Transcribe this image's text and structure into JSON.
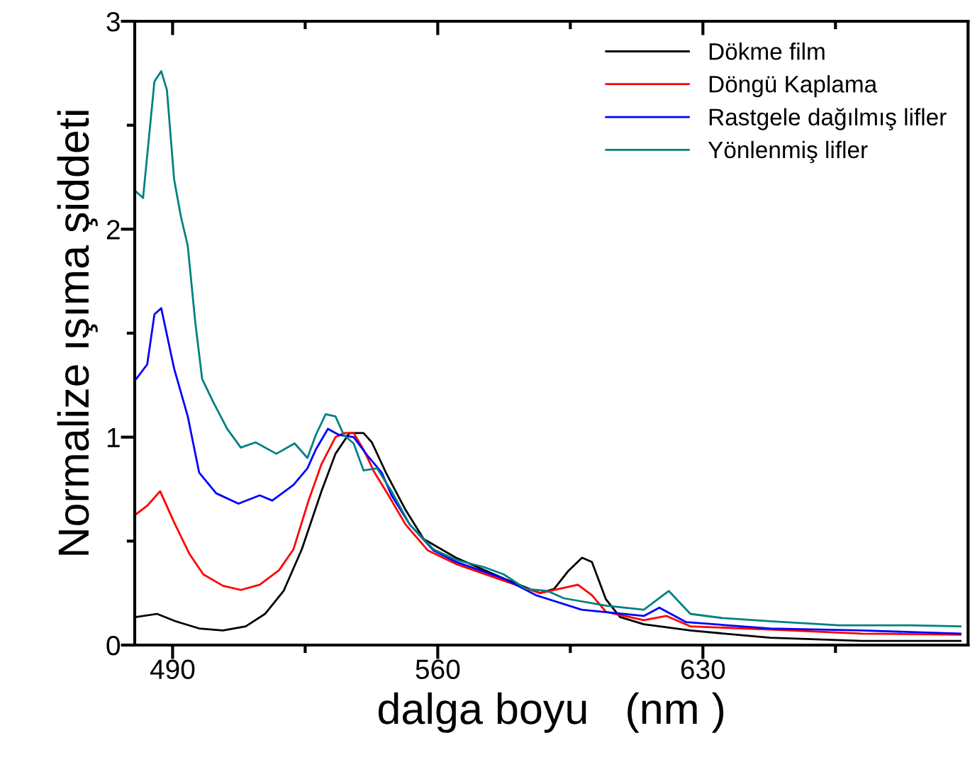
{
  "chart_data": {
    "type": "line",
    "xlabel": "dalga boyu   (nm )",
    "ylabel": "Normalize ışıma şiddeti",
    "xlim": [
      480,
      700
    ],
    "ylim": [
      0,
      3
    ],
    "xticks": [
      490,
      {
        "value": 525,
        "label": null
      },
      560,
      {
        "value": 595,
        "label": null
      },
      630,
      {
        "value": 665,
        "label": null
      }
    ],
    "yticks": [
      0,
      {
        "value": 0.5,
        "label": null
      },
      1,
      {
        "value": 1.5,
        "label": null
      },
      2,
      {
        "value": 2.5,
        "label": null
      },
      3
    ],
    "grid": false,
    "legend": "top right",
    "line_style": "solid",
    "marker": "none",
    "series": [
      {
        "name": "Dökme film",
        "color": "#000000",
        "x": [
          480.4,
          485.9,
          490.7,
          497,
          503.3,
          509.3,
          514.4,
          519.3,
          524.1,
          529.3,
          533,
          536.7,
          540.4,
          542.6,
          546.3,
          551.5,
          556.3,
          564.8,
          577.4,
          587,
          590.7,
          594.4,
          598.1,
          600.7,
          604.4,
          608.1,
          614.4,
          626.7,
          647.8,
          672,
          698
        ],
        "values": [
          0.135,
          0.15,
          0.115,
          0.08,
          0.07,
          0.09,
          0.15,
          0.26,
          0.46,
          0.74,
          0.92,
          1.02,
          1.02,
          0.975,
          0.83,
          0.65,
          0.51,
          0.42,
          0.32,
          0.25,
          0.27,
          0.355,
          0.42,
          0.4,
          0.22,
          0.135,
          0.1,
          0.07,
          0.035,
          0.02,
          0.02
        ]
      },
      {
        "name": "Döngü Kaplama",
        "color": "#ff0000",
        "x": [
          480.4,
          483.3,
          486.7,
          490.4,
          494.4,
          498.1,
          503.3,
          508,
          513,
          518.1,
          521.9,
          525.9,
          529.3,
          533,
          535.2,
          537.8,
          540.4,
          543.3,
          547,
          551.5,
          557.4,
          564.8,
          577.4,
          587,
          589.6,
          597,
          600.7,
          604.4,
          614.4,
          620.4,
          626.7,
          647.8,
          672,
          698
        ],
        "values": [
          0.63,
          0.67,
          0.74,
          0.59,
          0.44,
          0.34,
          0.285,
          0.265,
          0.29,
          0.36,
          0.46,
          0.695,
          0.87,
          1.0,
          1.02,
          1.02,
          0.94,
          0.83,
          0.72,
          0.58,
          0.455,
          0.39,
          0.31,
          0.25,
          0.26,
          0.29,
          0.24,
          0.16,
          0.12,
          0.14,
          0.09,
          0.075,
          0.055,
          0.05
        ]
      },
      {
        "name": "Rastgele dağılmış lifler",
        "color": "#0000ff",
        "x": [
          480.4,
          483.3,
          485.2,
          487,
          490.4,
          494,
          497,
          501.5,
          507.4,
          513,
          516.3,
          521.9,
          525.6,
          527.8,
          531,
          534,
          537.8,
          541.5,
          545.2,
          547.8,
          552.6,
          558.9,
          564.8,
          577.4,
          585.9,
          598,
          614.4,
          618.5,
          625.6,
          647.8,
          672,
          698
        ],
        "values": [
          1.28,
          1.35,
          1.59,
          1.62,
          1.33,
          1.1,
          0.83,
          0.73,
          0.68,
          0.72,
          0.695,
          0.77,
          0.85,
          0.94,
          1.04,
          1.01,
          1.0,
          0.91,
          0.83,
          0.72,
          0.58,
          0.455,
          0.4,
          0.32,
          0.24,
          0.17,
          0.14,
          0.18,
          0.11,
          0.08,
          0.07,
          0.055
        ]
      },
      {
        "name": "Yönlenmiş lifler",
        "color": "#008080",
        "x": [
          480.4,
          482.2,
          485.2,
          487,
          488.5,
          490.4,
          492.2,
          494,
          496,
          497.8,
          500.7,
          504.4,
          508,
          511.9,
          517.4,
          522.2,
          525.6,
          527.8,
          530.4,
          533,
          535.2,
          537.8,
          540.4,
          544,
          547.8,
          552.6,
          558.9,
          564.8,
          572.2,
          577.4,
          583.3,
          589,
          593.3,
          604.4,
          614.4,
          621,
          626.7,
          635.2,
          647.8,
          666,
          684.8,
          698
        ],
        "values": [
          2.18,
          2.15,
          2.71,
          2.76,
          2.67,
          2.24,
          2.06,
          1.92,
          1.55,
          1.28,
          1.17,
          1.04,
          0.95,
          0.975,
          0.92,
          0.97,
          0.9,
          1.01,
          1.11,
          1.1,
          1.01,
          0.97,
          0.84,
          0.85,
          0.74,
          0.58,
          0.46,
          0.41,
          0.375,
          0.34,
          0.27,
          0.26,
          0.225,
          0.19,
          0.17,
          0.26,
          0.15,
          0.13,
          0.115,
          0.095,
          0.095,
          0.09
        ]
      }
    ]
  }
}
